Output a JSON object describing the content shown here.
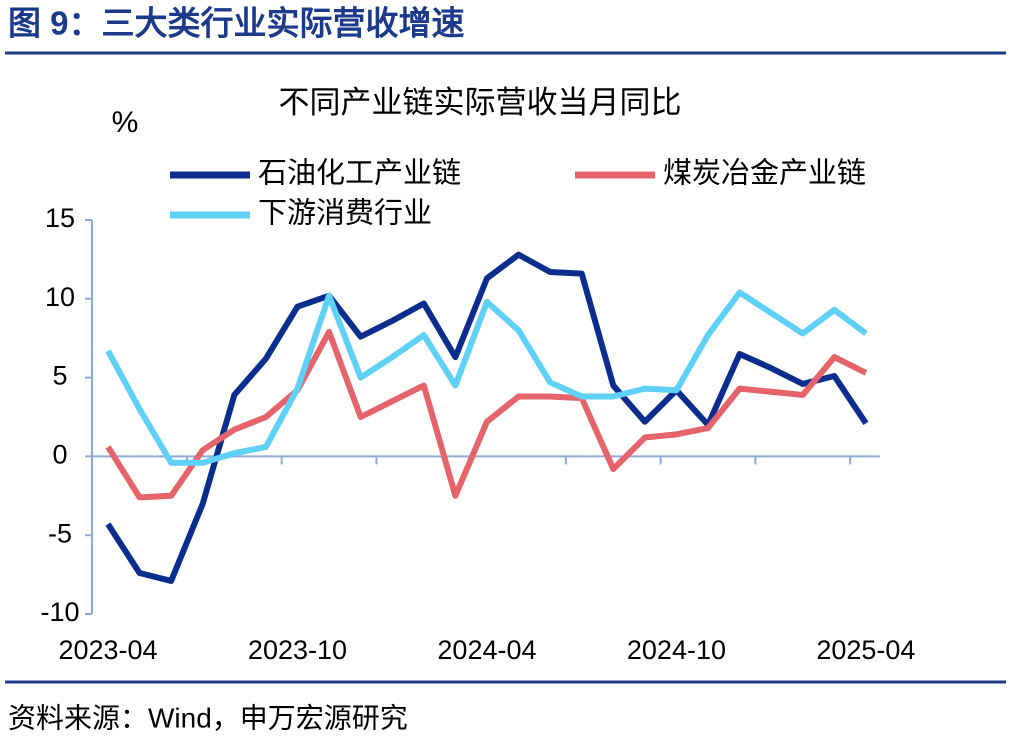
{
  "header": "图 9：三大类行业实际营收增速",
  "source": "资料来源：Wind，申万宏源研究",
  "chart_data": {
    "type": "line",
    "title": "不同产业链实际营收当月同比",
    "y_label": "%",
    "categories": [
      "2023-04",
      null,
      null,
      null,
      null,
      null,
      "2023-10",
      null,
      null,
      null,
      null,
      null,
      "2024-04",
      null,
      null,
      null,
      null,
      null,
      "2024-10",
      null,
      null,
      null,
      null,
      null,
      "2025-04"
    ],
    "series": [
      {
        "name": "石油化工产业链",
        "color": "#0b2e8e",
        "values": [
          -4.3,
          -7.4,
          -7.9,
          -3,
          3.9,
          6.2,
          9.5,
          10.2,
          7.6,
          8.6,
          9.7,
          6.3,
          11.3,
          12.8,
          11.7,
          11.6,
          4.5,
          2.2,
          4.2,
          2.0,
          6.5,
          5.6,
          4.6,
          5.1,
          2.1
        ]
      },
      {
        "name": "煤炭冶金产业链",
        "color": "#e5636a",
        "values": [
          0.6,
          -2.6,
          -2.5,
          0.4,
          1.7,
          2.5,
          4.2,
          7.9,
          2.5,
          3.5,
          4.5,
          -2.5,
          2.2,
          3.8,
          3.8,
          3.7,
          -0.8,
          1.2,
          1.4,
          1.8,
          4.3,
          4.1,
          3.9,
          6.3,
          5.3
        ]
      },
      {
        "name": "下游消费行业",
        "color": "#5fd0f6",
        "values": [
          6.7,
          3.0,
          -0.4,
          -0.4,
          0.2,
          0.6,
          4.3,
          10.2,
          5.0,
          6.3,
          7.7,
          4.5,
          9.8,
          8.0,
          4.7,
          3.8,
          3.8,
          4.3,
          4.2,
          7.7,
          10.4,
          9.1,
          7.8,
          9.3,
          7.8
        ]
      }
    ],
    "ylim": [
      -10,
      15
    ],
    "yticks": [
      -10,
      -5,
      0,
      5,
      10,
      15
    ],
    "legend": "top"
  }
}
